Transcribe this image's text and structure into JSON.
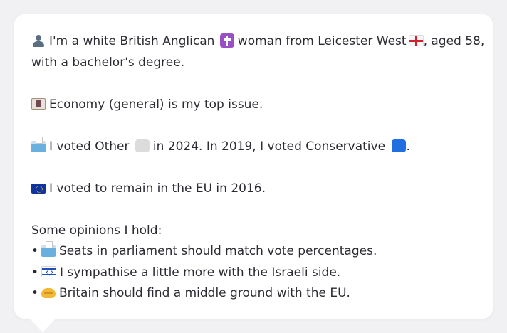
{
  "intro": {
    "line1_a": "I'm a white British Anglican",
    "line1_b": "woman from Leicester West",
    "line1_c": ", aged 58,",
    "line2": "with a bachelor's degree."
  },
  "issue": {
    "text": "Economy (general) is my top issue."
  },
  "votes": {
    "part_a": "I voted Other",
    "part_b": "in 2024. In 2019, I voted Conservative",
    "part_c": "."
  },
  "eu": {
    "text": "I voted to remain in the EU in 2016."
  },
  "opinions": {
    "heading": "Some opinions I hold:",
    "bullet": "•",
    "items": [
      {
        "icon": "ballot-box-icon",
        "text": "Seats in parliament should match vote percentages."
      },
      {
        "icon": "israel-flag-icon",
        "text": "I sympathise a little more with the Israeli side."
      },
      {
        "icon": "handshake-icon",
        "text": "Britain should find a middle ground with the EU."
      }
    ]
  },
  "colors": {
    "background": "#f1f1f3",
    "card": "#ffffff",
    "text": "#2b2b33",
    "conservative": "#1f6fe0",
    "other": "#dcdcdc"
  },
  "icons": {
    "person": "person-silhouette-icon",
    "religion": "latin-cross-icon",
    "region": "england-flag-icon",
    "issue": "money-icon",
    "vote": "ballot-box-icon",
    "other_party": "grey-square-icon",
    "conservative": "blue-square-icon",
    "eu": "eu-flag-icon"
  }
}
